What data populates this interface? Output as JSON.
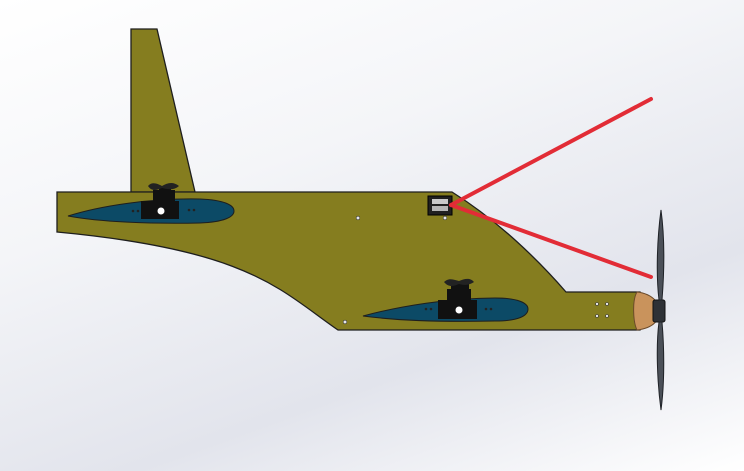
{
  "scene": {
    "view": "cad-render",
    "subject": "aircraft-side-view",
    "colors": {
      "background_light": "#ffffff",
      "background_shade": "#e2e4ec",
      "fuselage": "#857d1f",
      "outline": "#1e1e1e",
      "fairing": "#0c4a66",
      "servo": "#111111",
      "leader_line": "#e22c36",
      "spinner": "#c9935c",
      "propeller": "#4b5058"
    },
    "icons": [
      "servo-icon",
      "propeller-icon",
      "spinner-icon",
      "sensor-box-icon"
    ]
  }
}
